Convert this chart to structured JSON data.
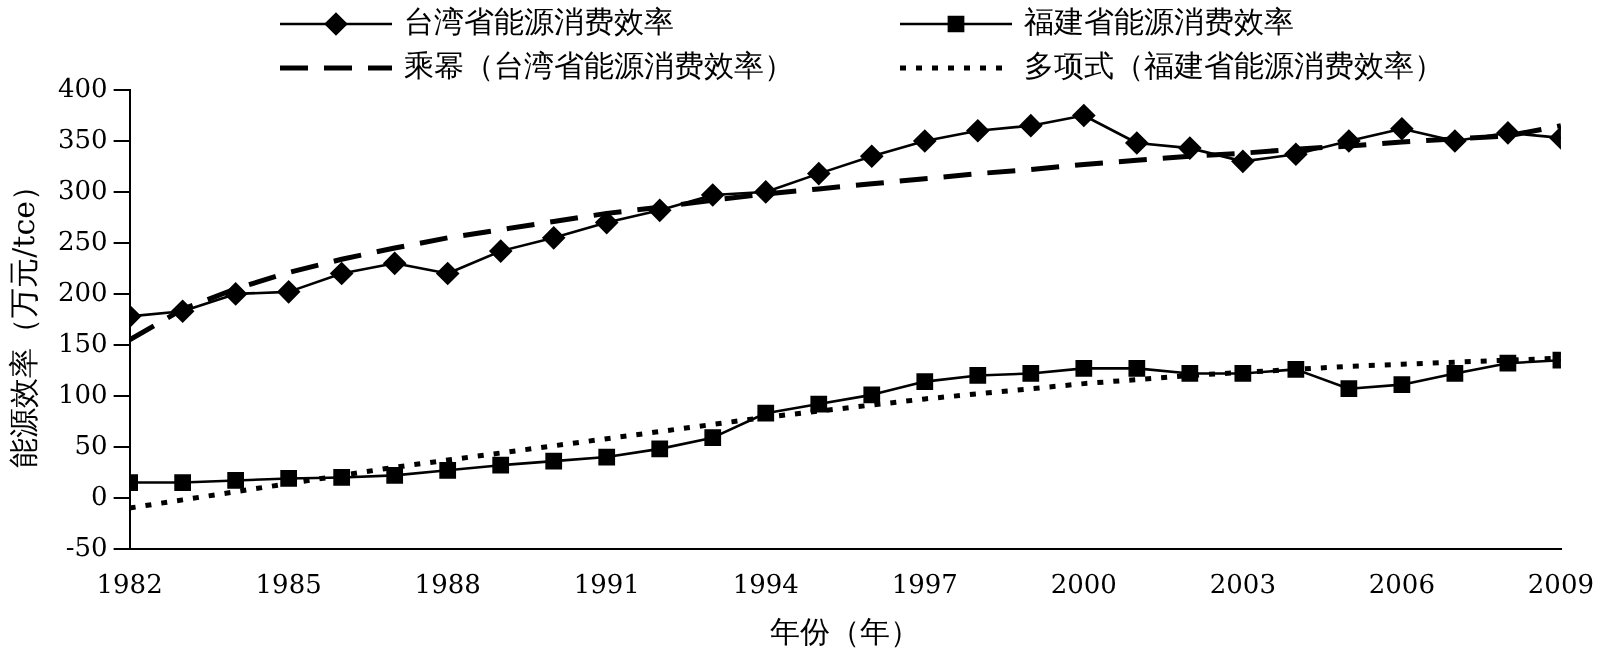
{
  "chart_data": {
    "type": "line",
    "xlabel": "年份（年）",
    "ylabel": "能源效率（万元/tce）",
    "x": [
      1982,
      1983,
      1984,
      1985,
      1986,
      1987,
      1988,
      1989,
      1990,
      1991,
      1992,
      1993,
      1994,
      1995,
      1996,
      1997,
      1998,
      1999,
      2000,
      2001,
      2002,
      2003,
      2004,
      2005,
      2006,
      2007,
      2008,
      2009
    ],
    "xlim": [
      1982,
      2009
    ],
    "xticks": [
      1982,
      1985,
      1988,
      1991,
      1994,
      1997,
      2000,
      2003,
      2006,
      2009
    ],
    "ylim": [
      -50,
      400
    ],
    "yticks": [
      -50,
      0,
      50,
      100,
      150,
      200,
      250,
      300,
      350,
      400
    ],
    "grid": false,
    "legend": "top",
    "series": [
      {
        "name": "台湾省能源消费效率",
        "color": "#000000",
        "marker": "diamond",
        "line_style": "solid",
        "values": [
          178,
          183,
          200,
          202,
          220,
          230,
          220,
          242,
          255,
          270,
          282,
          297,
          300,
          318,
          335,
          350,
          360,
          365,
          375,
          348,
          343,
          330,
          337,
          350,
          362,
          350,
          358,
          353
        ]
      },
      {
        "name": "福建省能源消费效率",
        "color": "#000000",
        "marker": "square",
        "line_style": "solid",
        "values": [
          15,
          15,
          17,
          19,
          20,
          22,
          27,
          32,
          36,
          40,
          48,
          59,
          83,
          92,
          101,
          114,
          120,
          122,
          127,
          127,
          122,
          122,
          126,
          107,
          111,
          122,
          132,
          135
        ]
      },
      {
        "name": "乘幂（台湾省能源消费效率）",
        "color": "#000000",
        "marker": "none",
        "line_style": "dashed",
        "values": [
          155,
          185,
          205,
          221,
          234,
          245,
          255,
          263,
          271,
          279,
          285,
          292,
          298,
          303,
          308,
          313,
          318,
          322,
          327,
          331,
          335,
          338,
          342,
          345,
          349,
          352,
          355,
          365
        ]
      },
      {
        "name": "多项式（福建省能源消费效率）",
        "color": "#000000",
        "marker": "none",
        "line_style": "dotted",
        "values": [
          -10,
          -2,
          6,
          14,
          22,
          30,
          37,
          44,
          51,
          58,
          65,
          72,
          79,
          85,
          91,
          97,
          102,
          107,
          112,
          116,
          120,
          123,
          126,
          129,
          131,
          133,
          135,
          137
        ]
      }
    ]
  }
}
